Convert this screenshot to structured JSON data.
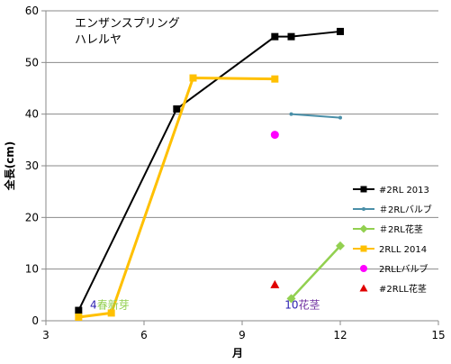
{
  "chart_data": {
    "type": "line",
    "title_lines": [
      "エンザンスプリング",
      "ハレルヤ"
    ],
    "xlabel": "月",
    "ylabel": "全長(cm)",
    "xlim": [
      3,
      15
    ],
    "ylim": [
      0,
      60
    ],
    "x_ticks": [
      3,
      6,
      9,
      12,
      15
    ],
    "y_ticks": [
      0,
      10,
      20,
      30,
      40,
      50,
      60
    ],
    "grid": "horizontal",
    "legend_position": "right",
    "series": [
      {
        "name": "#2RL 2013",
        "color": "#000000",
        "marker": "square",
        "line": true,
        "x": [
          4,
          7,
          10,
          10.5,
          12
        ],
        "y": [
          2,
          41,
          55,
          55,
          56
        ]
      },
      {
        "name": "＃2RLバルブ",
        "color": "#4a8fa8",
        "marker": "dot",
        "line": true,
        "x": [
          10.5,
          12
        ],
        "y": [
          40,
          39.3
        ]
      },
      {
        "name": "＃2RL花茎",
        "color": "#92d050",
        "marker": "diamond",
        "line": true,
        "x": [
          10.5,
          12
        ],
        "y": [
          4.3,
          14.5
        ]
      },
      {
        "name": "2RLL 2014",
        "color": "#ffc000",
        "marker": "square",
        "line": true,
        "x": [
          4,
          5,
          7.5,
          10
        ],
        "y": [
          0.7,
          1.5,
          47,
          46.8
        ]
      },
      {
        "name": "2RLLバルブ",
        "color": "#ff00ff",
        "marker": "circle",
        "line": false,
        "x": [
          10
        ],
        "y": [
          36
        ]
      },
      {
        "name": "#2RLL花茎",
        "color": "#e00000",
        "marker": "triangle",
        "line": false,
        "x": [
          10
        ],
        "y": [
          7
        ]
      }
    ],
    "annotations": [
      {
        "number": "4",
        "text": "春新芽",
        "number_color": "#2a1fb0",
        "text_color": "#92d050",
        "x": 4.35,
        "y": 2
      },
      {
        "number": "10",
        "text": "花茎",
        "number_color": "#2a1fb0",
        "text_color": "#7030a0",
        "x": 10.3,
        "y": 2
      }
    ]
  }
}
